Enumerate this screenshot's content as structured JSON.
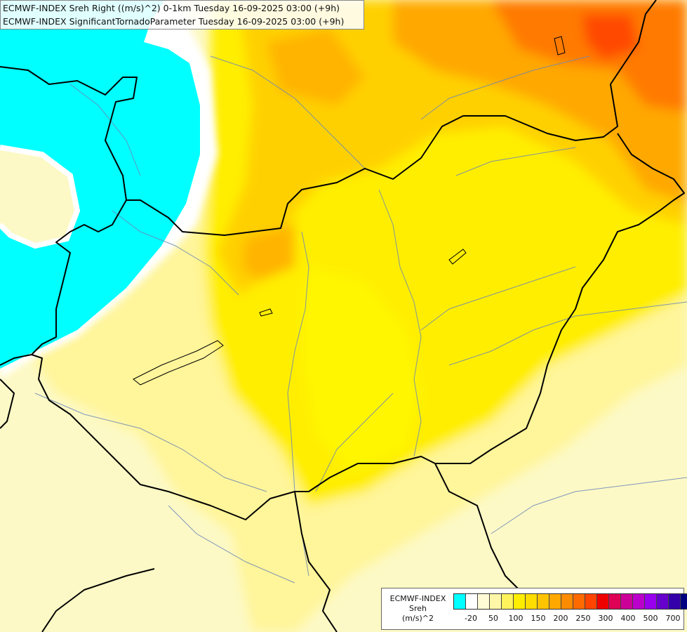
{
  "title": {
    "line1": "ECMWF-INDEX Sreh Right ((m/s)^2) 0-1km Tuesday 16-09-2025 03:00 (+9h)",
    "line2": "ECMWF-INDEX SignificantTornadoParameter Tuesday 16-09-2025 03:00 (+9h)"
  },
  "legend": {
    "line1": "ECMWF-INDEX",
    "line2": "Sreh",
    "line3": "(m/s)^2",
    "swatches": [
      "#00ffff",
      "#ffffff",
      "#fffbd6",
      "#fff7a8",
      "#fff35c",
      "#ffee00",
      "#ffdd00",
      "#ffc400",
      "#ffa800",
      "#ff8c00",
      "#ff6a00",
      "#ff4400",
      "#ee0000",
      "#dd0055",
      "#cc0099",
      "#bb00cc",
      "#9900ee",
      "#6600cc",
      "#3300aa",
      "#000080"
    ],
    "ticks": [
      "-20",
      "50",
      "100",
      "150",
      "200",
      "250",
      "300",
      "400",
      "500",
      "700"
    ]
  },
  "colors": {
    "cyan": "#00ffff",
    "pale": "#fdf9c6",
    "light_yellow": "#fff59a",
    "yellow": "#ffee00",
    "bright_yellow": "#fff500",
    "gold": "#ffd000",
    "orange": "#ffa800",
    "dark_orange": "#ff7a00",
    "red_orange": "#ff4a00"
  }
}
